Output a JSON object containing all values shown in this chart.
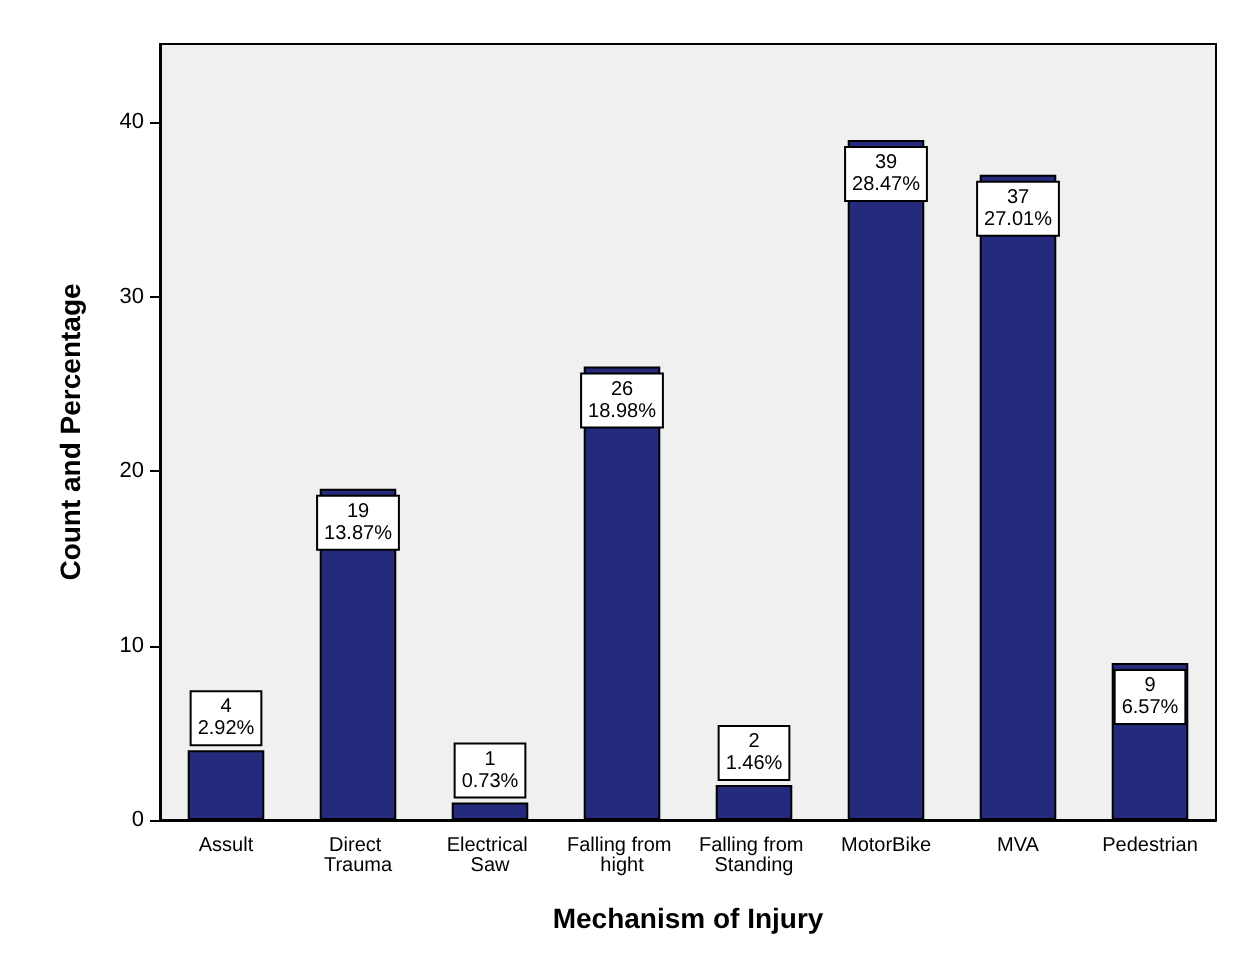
{
  "chart_data": {
    "type": "bar",
    "xlabel": "Mechanism of Injury",
    "ylabel": "Count and Percentage",
    "categories": [
      "Assult",
      "Direct Trauma",
      "Electrical Saw",
      "Falling from hight",
      "Falling from Standing",
      "MotorBike",
      "MVA",
      "Pedestrian"
    ],
    "values": [
      4,
      19,
      1,
      26,
      2,
      39,
      37,
      9
    ],
    "value_labels": [
      "4\n2.92%",
      "19\n13.87%",
      "1\n0.73%",
      "26\n18.98%",
      "2\n1.46%",
      "39\n28.47%",
      "37\n27.01%",
      "9\n6.57%"
    ],
    "color": "#262a7c",
    "ylim": [
      0,
      44.5
    ],
    "yticks": [
      0,
      10,
      20,
      30,
      40
    ],
    "grid": false
  }
}
